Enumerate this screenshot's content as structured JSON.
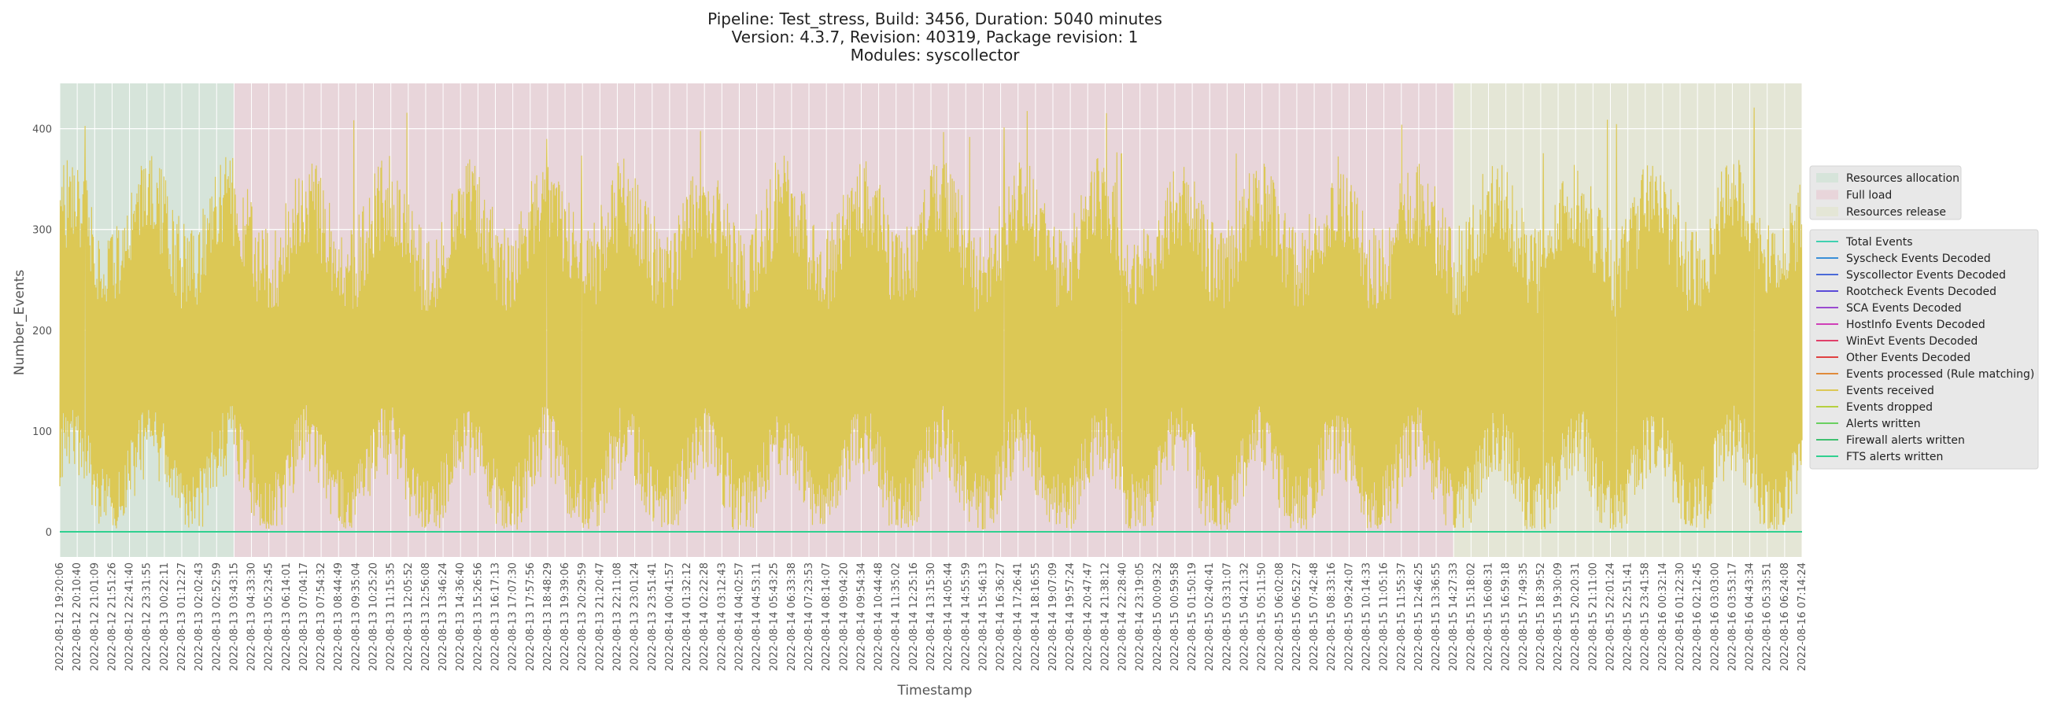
{
  "chart_data": {
    "type": "line",
    "title_lines": [
      "Pipeline: Test_stress, Build: 3456, Duration: 5040 minutes",
      "Version: 4.3.7, Revision: 40319, Package revision: 1",
      "Modules: syscollector"
    ],
    "xlabel": "Timestamp",
    "ylabel": "Number_Events",
    "ylim": [
      -25,
      445
    ],
    "yticks": [
      0,
      100,
      200,
      300,
      400
    ],
    "grid": true,
    "xtick_labels": [
      "2022-08-12 19:20:06",
      "2022-08-12 20:10:40",
      "2022-08-12 21:01:09",
      "2022-08-12 21:51:26",
      "2022-08-12 22:41:40",
      "2022-08-12 23:31:55",
      "2022-08-13 00:22:11",
      "2022-08-13 01:12:27",
      "2022-08-13 02:02:43",
      "2022-08-13 02:52:59",
      "2022-08-13 03:43:15",
      "2022-08-13 04:33:30",
      "2022-08-13 05:23:45",
      "2022-08-13 06:14:01",
      "2022-08-13 07:04:17",
      "2022-08-13 07:54:32",
      "2022-08-13 08:44:49",
      "2022-08-13 09:35:04",
      "2022-08-13 10:25:20",
      "2022-08-13 11:15:35",
      "2022-08-13 12:05:52",
      "2022-08-13 12:56:08",
      "2022-08-13 13:46:24",
      "2022-08-13 14:36:40",
      "2022-08-13 15:26:56",
      "2022-08-13 16:17:13",
      "2022-08-13 17:07:30",
      "2022-08-13 17:57:56",
      "2022-08-13 18:48:29",
      "2022-08-13 19:39:06",
      "2022-08-13 20:29:59",
      "2022-08-13 21:20:47",
      "2022-08-13 22:11:08",
      "2022-08-13 23:01:24",
      "2022-08-13 23:51:41",
      "2022-08-14 00:41:57",
      "2022-08-14 01:32:12",
      "2022-08-14 02:22:28",
      "2022-08-14 03:12:43",
      "2022-08-14 04:02:57",
      "2022-08-14 04:53:11",
      "2022-08-14 05:43:25",
      "2022-08-14 06:33:38",
      "2022-08-14 07:23:53",
      "2022-08-14 08:14:07",
      "2022-08-14 09:04:20",
      "2022-08-14 09:54:34",
      "2022-08-14 10:44:48",
      "2022-08-14 11:35:02",
      "2022-08-14 12:25:16",
      "2022-08-14 13:15:30",
      "2022-08-14 14:05:44",
      "2022-08-14 14:55:59",
      "2022-08-14 15:46:13",
      "2022-08-14 16:36:27",
      "2022-08-14 17:26:41",
      "2022-08-14 18:16:55",
      "2022-08-14 19:07:09",
      "2022-08-14 19:57:24",
      "2022-08-14 20:47:47",
      "2022-08-14 21:38:12",
      "2022-08-14 22:28:40",
      "2022-08-14 23:19:05",
      "2022-08-15 00:09:32",
      "2022-08-15 00:59:58",
      "2022-08-15 01:50:19",
      "2022-08-15 02:40:41",
      "2022-08-15 03:31:07",
      "2022-08-15 04:21:32",
      "2022-08-15 05:11:50",
      "2022-08-15 06:02:08",
      "2022-08-15 06:52:27",
      "2022-08-15 07:42:48",
      "2022-08-15 08:33:16",
      "2022-08-15 09:24:07",
      "2022-08-15 10:14:33",
      "2022-08-15 11:05:16",
      "2022-08-15 11:55:37",
      "2022-08-15 12:46:25",
      "2022-08-15 13:36:55",
      "2022-08-15 14:27:33",
      "2022-08-15 15:18:02",
      "2022-08-15 16:08:31",
      "2022-08-15 16:59:18",
      "2022-08-15 17:49:35",
      "2022-08-15 18:39:52",
      "2022-08-15 19:30:09",
      "2022-08-15 20:20:31",
      "2022-08-15 21:11:00",
      "2022-08-15 22:01:24",
      "2022-08-15 22:51:41",
      "2022-08-15 23:41:58",
      "2022-08-16 00:32:14",
      "2022-08-16 01:22:30",
      "2022-08-16 02:12:45",
      "2022-08-16 03:03:00",
      "2022-08-16 03:53:17",
      "2022-08-16 04:43:34",
      "2022-08-16 05:33:51",
      "2022-08-16 06:24:08",
      "2022-08-16 07:14:24"
    ],
    "phases": [
      {
        "name": "Resources allocation",
        "start": "2022-08-12 19:20:06",
        "end": "2022-08-13 03:43:15",
        "color": "#d6e4da"
      },
      {
        "name": "Full load",
        "start": "2022-08-13 03:43:15",
        "end": "2022-08-15 14:27:33",
        "color": "#e8d5da"
      },
      {
        "name": "Resources release",
        "start": "2022-08-15 14:27:33",
        "end": "2022-08-16 07:14:24",
        "color": "#e4e6d6"
      }
    ],
    "series": [
      {
        "name": "Total Events",
        "color": "#40d0b0",
        "approx_value": 0
      },
      {
        "name": "Syscheck Events Decoded",
        "color": "#3a8fd8",
        "approx_value": 0
      },
      {
        "name": "Syscollector Events Decoded",
        "color": "#4a6ad8",
        "approx_value": 0
      },
      {
        "name": "Rootcheck Events Decoded",
        "color": "#5a4ad8",
        "approx_value": 0
      },
      {
        "name": "SCA Events Decoded",
        "color": "#9a4ad0",
        "approx_value": 0
      },
      {
        "name": "HostInfo Events Decoded",
        "color": "#d040b8",
        "approx_value": 0
      },
      {
        "name": "WinEvt Events Decoded",
        "color": "#e0406a",
        "approx_value": 0
      },
      {
        "name": "Other Events Decoded",
        "color": "#e04040",
        "approx_value": 0
      },
      {
        "name": "Events processed (Rule matching)",
        "color": "#e08a3a",
        "approx_value": 0
      },
      {
        "name": "Events received",
        "color": "#dcc855",
        "typical_range": [
          20,
          330
        ],
        "max": 425
      },
      {
        "name": "Events dropped",
        "color": "#b6d040",
        "approx_value": 0
      },
      {
        "name": "Alerts written",
        "color": "#6ad060",
        "approx_value": 0
      },
      {
        "name": "Firewall alerts written",
        "color": "#40c070",
        "approx_value": 0
      },
      {
        "name": "FTS alerts written",
        "color": "#30d090",
        "approx_value": 0
      }
    ]
  }
}
